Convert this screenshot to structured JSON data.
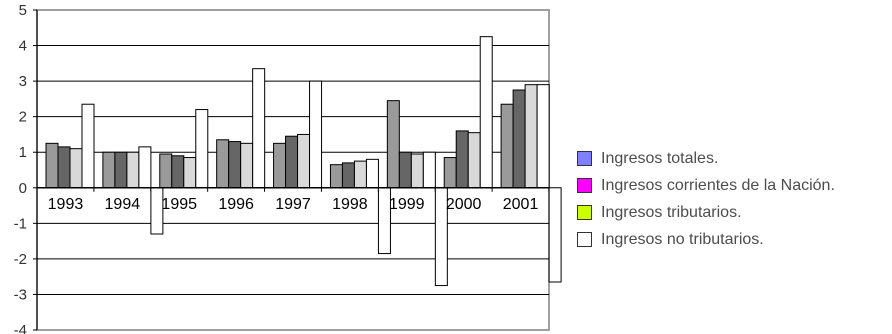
{
  "chart_data": {
    "type": "bar",
    "categories": [
      "1993",
      "1994",
      "1995",
      "1996",
      "1997",
      "1998",
      "1999",
      "2000",
      "2001"
    ],
    "series": [
      {
        "name": "Ingresos totales.",
        "color": "#9a9a9a",
        "legend_color": "#7f7fff",
        "values": [
          1.25,
          1.0,
          0.95,
          1.35,
          1.25,
          0.65,
          2.45,
          0.85,
          2.35
        ]
      },
      {
        "name": "Ingresos corrientes de la Nación.",
        "color": "#666666",
        "legend_color": "#ff00ff",
        "values": [
          1.15,
          1.0,
          0.9,
          1.3,
          1.45,
          0.7,
          1.0,
          1.6,
          2.75
        ]
      },
      {
        "name": "Ingresos tributarios.",
        "color": "#d9d9d9",
        "legend_color": "#ccff00",
        "values": [
          1.1,
          1.0,
          0.85,
          1.25,
          1.5,
          0.75,
          0.95,
          1.55,
          2.9
        ]
      },
      {
        "name": "Ingresos no tributarios.",
        "color": "#ffffff",
        "legend_color": "#ffffff",
        "values": [
          2.35,
          1.15,
          2.2,
          3.35,
          3.0,
          0.8,
          1.0,
          4.25,
          2.9
        ]
      },
      {
        "name": "",
        "color": "#ffffff",
        "values": [
          null,
          -1.3,
          null,
          null,
          null,
          -1.85,
          -2.75,
          null,
          -2.65
        ]
      }
    ],
    "ylim": [
      -4,
      5
    ],
    "yticks": [
      "5",
      "4",
      "3",
      "2",
      "1",
      "0",
      "-1",
      "-2",
      "-3",
      "-4"
    ],
    "grid": true,
    "legend_position": "right"
  }
}
